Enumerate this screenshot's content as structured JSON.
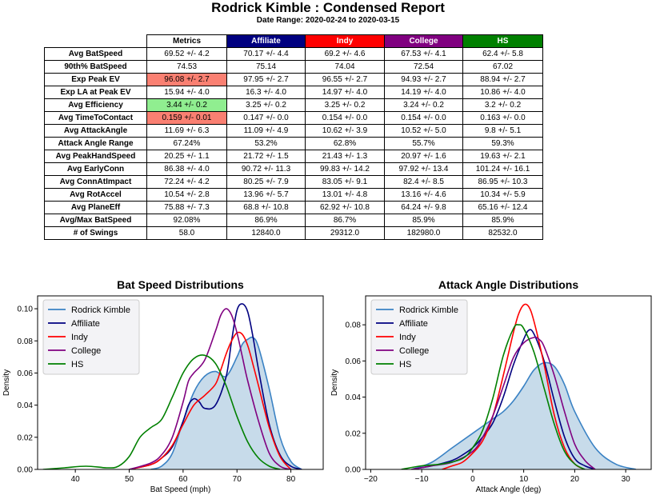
{
  "report": {
    "title": "Rodrick Kimble : Condensed Report",
    "date_range": "Date Range: 2020-02-24 to 2020-03-15"
  },
  "table": {
    "columns": [
      {
        "label": "Metrics",
        "color": "#ffffff",
        "text_color": "#000000"
      },
      {
        "label": "Affiliate",
        "color": "#000080",
        "text_color": "#ffffff"
      },
      {
        "label": "Indy",
        "color": "#ff0000",
        "text_color": "#ffffff"
      },
      {
        "label": "College",
        "color": "#800080",
        "text_color": "#ffffff"
      },
      {
        "label": "HS",
        "color": "#008000",
        "text_color": "#ffffff"
      }
    ],
    "rows": [
      {
        "label": "Avg BatSpeed",
        "cells": [
          "69.52 +/- 4.2",
          "70.17 +/- 4.4",
          "69.2 +/- 4.6",
          "67.53 +/- 4.1",
          "62.4 +/- 5.8"
        ],
        "highlight": ""
      },
      {
        "label": "90th% BatSpeed",
        "cells": [
          "74.53",
          "75.14",
          "74.04",
          "72.54",
          "67.02"
        ],
        "highlight": ""
      },
      {
        "label": "Exp Peak EV",
        "cells": [
          "96.08 +/- 2.7",
          "97.95 +/- 2.7",
          "96.55 +/- 2.7",
          "94.93 +/- 2.7",
          "88.94 +/- 2.7"
        ],
        "highlight": "#fa8072"
      },
      {
        "label": "Exp LA at Peak EV",
        "cells": [
          "15.94 +/- 4.0",
          "16.3 +/- 4.0",
          "14.97 +/- 4.0",
          "14.19 +/- 4.0",
          "10.86 +/- 4.0"
        ],
        "highlight": ""
      },
      {
        "label": "Avg Efficiency",
        "cells": [
          "3.44 +/- 0.2",
          "3.25 +/- 0.2",
          "3.25 +/- 0.2",
          "3.24 +/- 0.2",
          "3.2 +/- 0.2"
        ],
        "highlight": "#90ee90"
      },
      {
        "label": "Avg TimeToContact",
        "cells": [
          "0.159 +/- 0.01",
          "0.147 +/- 0.0",
          "0.154 +/- 0.0",
          "0.154 +/- 0.0",
          "0.163 +/- 0.0"
        ],
        "highlight": "#fa8072"
      },
      {
        "label": "Avg AttackAngle",
        "cells": [
          "11.69 +/- 6.3",
          "11.09 +/- 4.9",
          "10.62 +/- 3.9",
          "10.52 +/- 5.0",
          "9.8 +/- 5.1"
        ],
        "highlight": ""
      },
      {
        "label": "Attack Angle Range",
        "cells": [
          "67.24%",
          "53.2%",
          "62.8%",
          "55.7%",
          "59.3%"
        ],
        "highlight": ""
      },
      {
        "label": "Avg PeakHandSpeed",
        "cells": [
          "20.25 +/- 1.1",
          "21.72 +/- 1.5",
          "21.43 +/- 1.3",
          "20.97 +/- 1.6",
          "19.63 +/- 2.1"
        ],
        "highlight": ""
      },
      {
        "label": "Avg EarlyConn",
        "cells": [
          "86.38 +/- 4.0",
          "90.72 +/- 11.3",
          "99.83 +/- 14.2",
          "97.92 +/- 13.4",
          "101.24 +/- 16.1"
        ],
        "highlight": ""
      },
      {
        "label": "Avg ConnAtImpact",
        "cells": [
          "72.24 +/- 4.2",
          "80.25 +/- 7.9",
          "83.05 +/- 9.1",
          "82.4 +/- 8.5",
          "86.95 +/- 10.3"
        ],
        "highlight": ""
      },
      {
        "label": "Avg RotAccel",
        "cells": [
          "10.54 +/- 2.8",
          "13.96 +/- 5.7",
          "13.01 +/- 4.8",
          "13.16 +/- 4.6",
          "10.34 +/- 5.9"
        ],
        "highlight": ""
      },
      {
        "label": "Avg PlaneEff",
        "cells": [
          "75.88 +/- 7.3",
          "68.8 +/- 10.8",
          "62.92 +/- 10.8",
          "64.24 +/- 9.8",
          "65.16 +/- 12.4"
        ],
        "highlight": ""
      },
      {
        "label": "Avg/Max BatSpeed",
        "cells": [
          "92.08%",
          "86.9%",
          "86.7%",
          "85.9%",
          "85.9%"
        ],
        "highlight": ""
      },
      {
        "label": "# of Swings",
        "cells": [
          "58.0",
          "12840.0",
          "29312.0",
          "182980.0",
          "82532.0"
        ],
        "highlight": ""
      }
    ]
  },
  "chart_data": [
    {
      "type": "line",
      "title": "Bat Speed Distributions",
      "xlabel": "Bat Speed (mph)",
      "ylabel": "Density",
      "xlim": [
        33,
        86
      ],
      "ylim": [
        0,
        0.108
      ],
      "xticks": [
        40,
        50,
        60,
        70,
        80
      ],
      "yticks": [
        0.0,
        0.02,
        0.04,
        0.06,
        0.08,
        0.1
      ],
      "ytick_labels": [
        "0.00",
        "0.02",
        "0.04",
        "0.06",
        "0.08",
        "0.10"
      ],
      "legend_position": "top-left",
      "series": [
        {
          "name": "Rodrick Kimble",
          "color": "#3a82c4",
          "fill": "#c7dbea",
          "x": [
            54,
            56,
            58,
            60,
            62,
            64,
            66,
            68,
            70,
            71,
            72,
            73,
            74,
            76,
            78,
            80,
            82
          ],
          "y": [
            0.0,
            0.002,
            0.01,
            0.03,
            0.048,
            0.058,
            0.061,
            0.058,
            0.07,
            0.078,
            0.081,
            0.082,
            0.076,
            0.05,
            0.02,
            0.005,
            0.0
          ]
        },
        {
          "name": "Affiliate",
          "color": "#000080",
          "x": [
            50,
            54,
            56,
            58,
            60,
            61,
            62,
            63,
            64,
            66,
            68,
            69,
            70,
            71,
            72,
            73,
            74,
            76,
            78,
            80,
            82
          ],
          "y": [
            0.0,
            0.003,
            0.007,
            0.014,
            0.03,
            0.04,
            0.044,
            0.042,
            0.038,
            0.04,
            0.058,
            0.08,
            0.099,
            0.103,
            0.098,
            0.082,
            0.062,
            0.028,
            0.009,
            0.002,
            0.0
          ]
        },
        {
          "name": "Indy",
          "color": "#ff0000",
          "x": [
            50,
            54,
            56,
            58,
            60,
            62,
            64,
            66,
            67,
            68,
            69,
            70,
            71,
            72,
            73,
            74,
            76,
            78,
            80
          ],
          "y": [
            0.0,
            0.003,
            0.007,
            0.015,
            0.028,
            0.04,
            0.046,
            0.053,
            0.062,
            0.072,
            0.08,
            0.085,
            0.084,
            0.077,
            0.065,
            0.052,
            0.026,
            0.008,
            0.0
          ]
        },
        {
          "name": "College",
          "color": "#800080",
          "x": [
            50,
            54,
            56,
            58,
            60,
            61,
            62,
            64,
            66,
            67,
            68,
            69,
            70,
            71,
            72,
            74,
            76,
            78,
            80
          ],
          "y": [
            0.0,
            0.004,
            0.009,
            0.02,
            0.042,
            0.055,
            0.06,
            0.068,
            0.086,
            0.096,
            0.1,
            0.096,
            0.085,
            0.07,
            0.055,
            0.03,
            0.01,
            0.002,
            0.0
          ]
        },
        {
          "name": "HS",
          "color": "#008000",
          "x": [
            34,
            38,
            42,
            46,
            48,
            50,
            52,
            54,
            56,
            58,
            60,
            62,
            64,
            66,
            68,
            70,
            72,
            74,
            76,
            78
          ],
          "y": [
            0.0,
            0.001,
            0.002,
            0.001,
            0.002,
            0.008,
            0.02,
            0.026,
            0.031,
            0.045,
            0.06,
            0.069,
            0.071,
            0.066,
            0.052,
            0.033,
            0.017,
            0.007,
            0.002,
            0.0
          ]
        }
      ]
    },
    {
      "type": "line",
      "title": "Attack Angle Distributions",
      "xlabel": "Attack Angle (deg)",
      "ylabel": "Density",
      "xlim": [
        -21,
        35
      ],
      "ylim": [
        0,
        0.096
      ],
      "xticks": [
        -20,
        -10,
        0,
        10,
        20,
        30
      ],
      "yticks": [
        0.0,
        0.02,
        0.04,
        0.06,
        0.08
      ],
      "ytick_labels": [
        "0.00",
        "0.02",
        "0.04",
        "0.06",
        "0.08"
      ],
      "legend_position": "top-left",
      "series": [
        {
          "name": "Rodrick Kimble",
          "color": "#3a82c4",
          "fill": "#c7dbea",
          "x": [
            -12,
            -8,
            -4,
            0,
            4,
            6,
            8,
            10,
            12,
            14,
            16,
            18,
            20,
            24,
            28,
            32
          ],
          "y": [
            0.0,
            0.004,
            0.012,
            0.02,
            0.028,
            0.032,
            0.038,
            0.046,
            0.055,
            0.059,
            0.057,
            0.047,
            0.032,
            0.012,
            0.003,
            0.0
          ]
        },
        {
          "name": "Affiliate",
          "color": "#000080",
          "x": [
            -12,
            -8,
            -4,
            -2,
            0,
            2,
            4,
            6,
            8,
            10,
            11,
            12,
            14,
            16,
            18,
            20,
            22,
            24
          ],
          "y": [
            0.0,
            0.002,
            0.005,
            0.008,
            0.012,
            0.018,
            0.026,
            0.04,
            0.058,
            0.072,
            0.077,
            0.075,
            0.06,
            0.038,
            0.018,
            0.006,
            0.002,
            0.0
          ]
        },
        {
          "name": "Indy",
          "color": "#ff0000",
          "x": [
            -6,
            -4,
            -2,
            0,
            2,
            4,
            6,
            8,
            9,
            10,
            11,
            12,
            14,
            16,
            18,
            20,
            22
          ],
          "y": [
            0.0,
            0.002,
            0.004,
            0.009,
            0.016,
            0.03,
            0.052,
            0.076,
            0.086,
            0.091,
            0.09,
            0.082,
            0.058,
            0.03,
            0.012,
            0.003,
            0.0
          ]
        },
        {
          "name": "College",
          "color": "#800080",
          "x": [
            -12,
            -8,
            -4,
            0,
            2,
            4,
            6,
            8,
            10,
            12,
            13,
            14,
            16,
            18,
            20,
            22,
            24
          ],
          "y": [
            0.0,
            0.002,
            0.004,
            0.01,
            0.018,
            0.03,
            0.046,
            0.062,
            0.07,
            0.073,
            0.072,
            0.068,
            0.052,
            0.032,
            0.014,
            0.005,
            0.0
          ]
        },
        {
          "name": "HS",
          "color": "#008000",
          "x": [
            -14,
            -10,
            -6,
            -2,
            0,
            2,
            4,
            6,
            8,
            9,
            10,
            12,
            14,
            16,
            18,
            20,
            22
          ],
          "y": [
            0.0,
            0.002,
            0.003,
            0.006,
            0.012,
            0.022,
            0.04,
            0.063,
            0.078,
            0.08,
            0.078,
            0.065,
            0.045,
            0.025,
            0.01,
            0.003,
            0.0
          ]
        }
      ]
    }
  ]
}
